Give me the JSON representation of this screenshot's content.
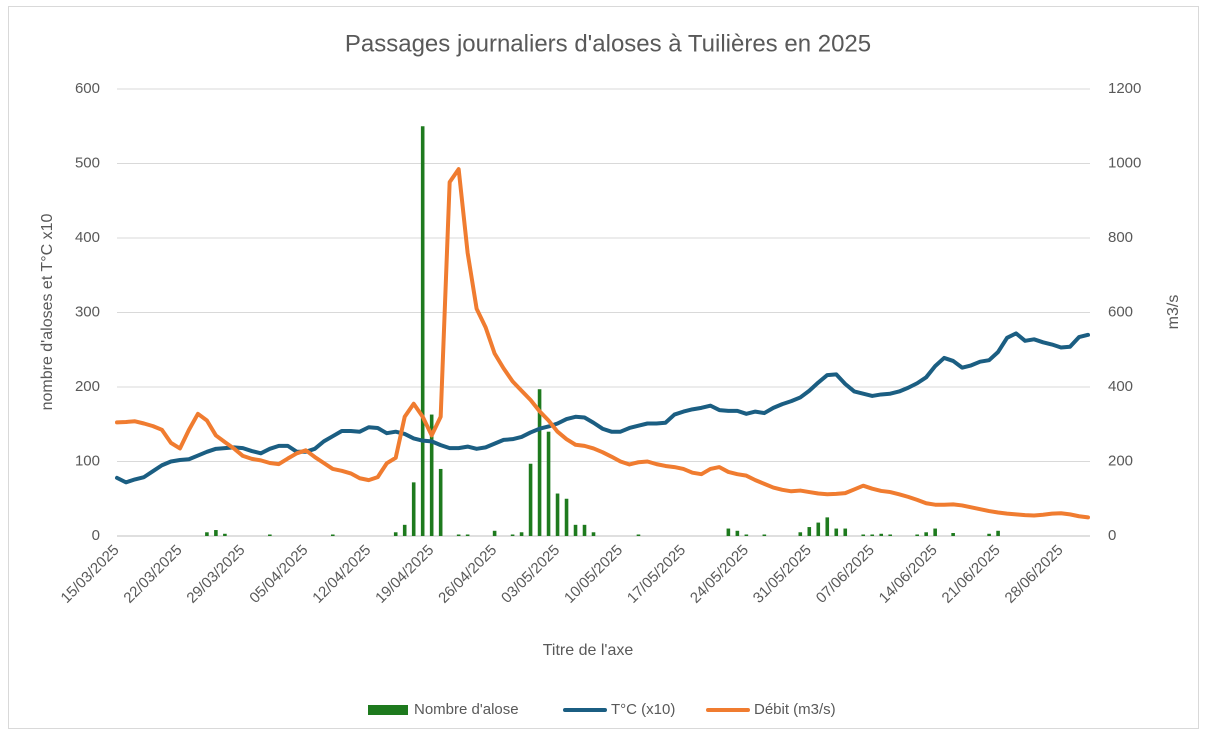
{
  "chart_data": {
    "type": "combo",
    "title": "Passages journaliers d'aloses à Tuilières en 2025",
    "xlabel": "Titre de l'axe",
    "ylabel": "nombre d'aloses et T°C x10",
    "y2label": "m3/s",
    "categories": [
      "15/03/2025",
      null,
      null,
      null,
      null,
      null,
      null,
      "22/03/2025",
      null,
      null,
      null,
      null,
      null,
      null,
      "29/03/2025",
      null,
      null,
      null,
      null,
      null,
      null,
      "05/04/2025",
      null,
      null,
      null,
      null,
      null,
      null,
      "12/04/2025",
      null,
      null,
      null,
      null,
      null,
      null,
      "19/04/2025",
      null,
      null,
      null,
      null,
      null,
      null,
      "26/04/2025",
      null,
      null,
      null,
      null,
      null,
      null,
      "03/05/2025",
      null,
      null,
      null,
      null,
      null,
      null,
      "10/05/2025",
      null,
      null,
      null,
      null,
      null,
      null,
      "17/05/2025",
      null,
      null,
      null,
      null,
      null,
      null,
      "24/05/2025",
      null,
      null,
      null,
      null,
      null,
      null,
      "31/05/2025",
      null,
      null,
      null,
      null,
      null,
      null,
      "07/06/2025",
      null,
      null,
      null,
      null,
      null,
      null,
      "14/06/2025",
      null,
      null,
      null,
      null,
      null,
      null,
      "21/06/2025",
      null,
      null,
      null,
      null,
      null,
      null,
      "28/06/2025",
      null,
      null,
      null
    ],
    "ylim": [
      0,
      600
    ],
    "yticks": [
      0,
      100,
      200,
      300,
      400,
      500,
      600
    ],
    "y2lim": [
      0,
      1200
    ],
    "y2ticks": [
      0,
      200,
      400,
      600,
      800,
      1000,
      1200
    ],
    "grid": true,
    "legend": "bottom",
    "series": [
      {
        "name": "Nombre d'alose",
        "type": "bar",
        "color": "#1e7a1e",
        "values": [
          0,
          0,
          0,
          0,
          0,
          0,
          0,
          0,
          0,
          0,
          5,
          8,
          3,
          0,
          0,
          0,
          0,
          2,
          0,
          0,
          0,
          0,
          0,
          0,
          2,
          0,
          0,
          0,
          0,
          0,
          0,
          5,
          15,
          72,
          550,
          163,
          90,
          0,
          2,
          2,
          0,
          0,
          7,
          0,
          2,
          5,
          97,
          197,
          140,
          57,
          50,
          15,
          15,
          5,
          0,
          0,
          0,
          0,
          2,
          0,
          0,
          0,
          0,
          0,
          0,
          0,
          0,
          0,
          10,
          7,
          2,
          0,
          2,
          0,
          0,
          0,
          5,
          12,
          18,
          25,
          10,
          10,
          0,
          2,
          2,
          3,
          2,
          0,
          0,
          2,
          5,
          10,
          0,
          4,
          0,
          0,
          0,
          3,
          7,
          0,
          0,
          0,
          0,
          0,
          0,
          0,
          0,
          0,
          0
        ]
      },
      {
        "name": "T°C (x10)",
        "type": "line",
        "color": "#1b5e82",
        "values": [
          78,
          72,
          76,
          79,
          87,
          95,
          100,
          102,
          103,
          108,
          113,
          117,
          118,
          119,
          118,
          114,
          111,
          117,
          121,
          121,
          113,
          113,
          117,
          127,
          134,
          141,
          141,
          140,
          146,
          145,
          138,
          140,
          137,
          131,
          128,
          127,
          122,
          118,
          118,
          120,
          117,
          119,
          124,
          129,
          130,
          133,
          139,
          144,
          147,
          151,
          157,
          160,
          159,
          152,
          144,
          140,
          140,
          145,
          148,
          151,
          151,
          152,
          163,
          167,
          170,
          172,
          175,
          169,
          168,
          168,
          164,
          167,
          165,
          172,
          177,
          181,
          186,
          195,
          206,
          216,
          217,
          204,
          194,
          191,
          188,
          190,
          191,
          194,
          199,
          205,
          213,
          228,
          239,
          235,
          226,
          229,
          234,
          236,
          247,
          266,
          272,
          262,
          264,
          260,
          257,
          253,
          254,
          267,
          270
        ]
      },
      {
        "name": "Débit (m3/s)",
        "type": "line",
        "axis": "y2",
        "color": "#f07c30",
        "values": [
          305,
          306,
          308,
          302,
          295,
          285,
          250,
          235,
          285,
          328,
          310,
          270,
          252,
          235,
          215,
          207,
          203,
          196,
          193,
          208,
          222,
          230,
          212,
          196,
          180,
          175,
          168,
          155,
          150,
          158,
          195,
          210,
          320,
          355,
          320,
          270,
          320,
          950,
          985,
          760,
          610,
          560,
          490,
          450,
          415,
          390,
          365,
          335,
          310,
          280,
          260,
          245,
          242,
          235,
          225,
          213,
          200,
          192,
          198,
          200,
          193,
          188,
          185,
          180,
          170,
          166,
          180,
          185,
          172,
          166,
          162,
          150,
          140,
          130,
          124,
          120,
          122,
          118,
          114,
          112,
          113,
          115,
          125,
          135,
          127,
          121,
          118,
          112,
          105,
          97,
          88,
          84,
          84,
          85,
          82,
          77,
          72,
          67,
          63,
          60,
          58,
          56,
          55,
          57,
          60,
          61,
          58,
          53,
          50
        ]
      }
    ]
  }
}
